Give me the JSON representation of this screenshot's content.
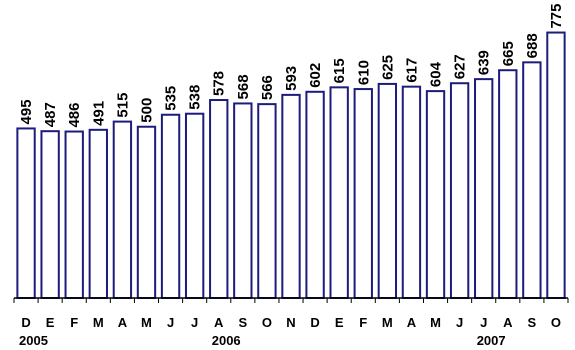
{
  "chart_data": {
    "type": "bar",
    "title": "",
    "xlabel": "",
    "ylabel": "",
    "categories": [
      "D",
      "E",
      "F",
      "M",
      "A",
      "M",
      "J",
      "J",
      "A",
      "S",
      "O",
      "N",
      "D",
      "E",
      "F",
      "M",
      "A",
      "M",
      "J",
      "J",
      "A",
      "S",
      "O"
    ],
    "year_labels": [
      {
        "index": 0,
        "label": "2005"
      },
      {
        "index": 8,
        "label": "2006"
      },
      {
        "index": 19,
        "label": "2007"
      }
    ],
    "values": [
      495,
      487,
      486,
      491,
      515,
      500,
      535,
      538,
      578,
      568,
      566,
      593,
      602,
      615,
      610,
      625,
      617,
      604,
      627,
      639,
      665,
      688,
      775
    ],
    "ylim": [
      0,
      870
    ],
    "grid": false,
    "legend": "none",
    "bar_color": "#1c1c7c",
    "bar_fill": "#ffffff"
  }
}
